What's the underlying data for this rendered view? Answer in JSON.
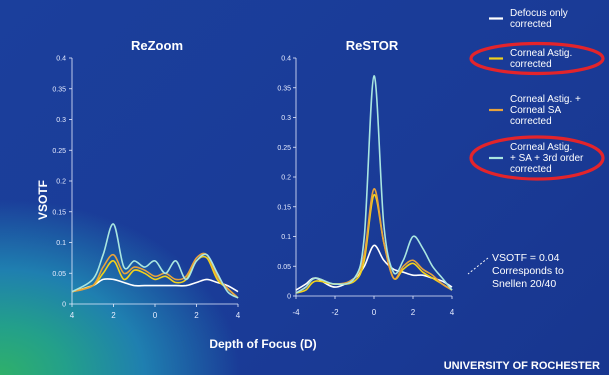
{
  "chart_data": [
    {
      "type": "line",
      "title": "ReZoom",
      "ylabel": "VSOTF",
      "xlabel": "Depth of Focus (D)",
      "xlim": [
        -4,
        4
      ],
      "ylim": [
        0,
        0.4
      ],
      "x_ticks": [
        "4",
        "2",
        "0",
        "2",
        "4"
      ],
      "y_ticks": [
        "0",
        "0.05",
        "0.1",
        "0.15",
        "0.2",
        "0.25",
        "0.3",
        "0.35",
        "0.4"
      ],
      "series": [
        {
          "name": "Defocus only corrected",
          "color": "#ffffff",
          "x": [
            -4,
            -3,
            -2.5,
            -2,
            -1.5,
            -1,
            -0.5,
            0,
            0.5,
            1,
            1.5,
            2,
            2.5,
            3,
            3.5,
            4
          ],
          "y": [
            0.02,
            0.03,
            0.04,
            0.04,
            0.035,
            0.03,
            0.03,
            0.03,
            0.03,
            0.03,
            0.03,
            0.035,
            0.04,
            0.035,
            0.03,
            0.02
          ]
        },
        {
          "name": "Corneal Astig. corrected",
          "color": "#f2d21b",
          "x": [
            -4,
            -3,
            -2.5,
            -2,
            -1.5,
            -1,
            -0.5,
            0,
            0.5,
            1,
            1.5,
            2,
            2.5,
            3,
            3.5,
            4
          ],
          "y": [
            0.02,
            0.03,
            0.05,
            0.07,
            0.04,
            0.055,
            0.05,
            0.04,
            0.045,
            0.035,
            0.04,
            0.07,
            0.075,
            0.04,
            0.025,
            0.01
          ]
        },
        {
          "name": "Corneal Astig. + Corneal SA corrected",
          "color": "#e8a23c",
          "x": [
            -4,
            -3,
            -2.5,
            -2,
            -1.5,
            -1,
            -0.5,
            0,
            0.5,
            1,
            1.5,
            2,
            2.5,
            3,
            3.5,
            4
          ],
          "y": [
            0.02,
            0.03,
            0.06,
            0.08,
            0.05,
            0.06,
            0.055,
            0.045,
            0.05,
            0.04,
            0.045,
            0.075,
            0.08,
            0.045,
            0.025,
            0.01
          ]
        },
        {
          "name": "Corneal Astig. + SA + 3rd order corrected",
          "color": "#a9e6e1",
          "x": [
            -4,
            -3,
            -2.5,
            -2,
            -1.5,
            -1,
            -0.5,
            0,
            0.5,
            1,
            1.5,
            2,
            2.5,
            3,
            3.5,
            4
          ],
          "y": [
            0.02,
            0.04,
            0.08,
            0.13,
            0.06,
            0.07,
            0.06,
            0.07,
            0.05,
            0.07,
            0.04,
            0.07,
            0.08,
            0.05,
            0.02,
            0.01
          ]
        }
      ]
    },
    {
      "type": "line",
      "title": "ReSTOR",
      "xlim": [
        -4,
        4
      ],
      "ylim": [
        0,
        0.4
      ],
      "x_ticks": [
        "-4",
        "-2",
        "0",
        "2",
        "4"
      ],
      "y_ticks": [
        "0",
        "0.05",
        "0.1",
        "0.15",
        "0.2",
        "0.25",
        "0.3",
        "0.35",
        "0.4"
      ],
      "series": [
        {
          "name": "Defocus only corrected",
          "color": "#ffffff",
          "x": [
            -4,
            -3.5,
            -3,
            -2,
            -1,
            -0.5,
            0,
            0.5,
            1,
            1.5,
            2,
            2.5,
            3,
            3.5,
            4
          ],
          "y": [
            0.01,
            0.02,
            0.03,
            0.015,
            0.03,
            0.05,
            0.085,
            0.06,
            0.045,
            0.04,
            0.035,
            0.035,
            0.03,
            0.025,
            0.015
          ]
        },
        {
          "name": "Corneal Astig. corrected",
          "color": "#f2d21b",
          "x": [
            -4,
            -3.5,
            -3,
            -2,
            -1,
            -0.5,
            0,
            0.5,
            1,
            1.5,
            2,
            2.5,
            3,
            3.5,
            4
          ],
          "y": [
            0.005,
            0.01,
            0.025,
            0.02,
            0.025,
            0.06,
            0.17,
            0.09,
            0.03,
            0.045,
            0.055,
            0.04,
            0.03,
            0.02,
            0.01
          ]
        },
        {
          "name": "Corneal Astig. + Corneal SA corrected",
          "color": "#e8a23c",
          "x": [
            -4,
            -3.5,
            -3,
            -2,
            -1,
            -0.5,
            0,
            0.5,
            1,
            1.5,
            2,
            2.5,
            3,
            3.5,
            4
          ],
          "y": [
            0.005,
            0.015,
            0.03,
            0.02,
            0.03,
            0.07,
            0.18,
            0.09,
            0.03,
            0.05,
            0.06,
            0.045,
            0.035,
            0.02,
            0.01
          ]
        },
        {
          "name": "Corneal Astig. + SA + 3rd order corrected",
          "color": "#a9e6e1",
          "x": [
            -4,
            -3.5,
            -3,
            -2,
            -1,
            -0.5,
            0,
            0.5,
            1,
            1.5,
            2,
            2.5,
            3,
            3.5,
            4
          ],
          "y": [
            0.005,
            0.015,
            0.03,
            0.02,
            0.03,
            0.1,
            0.37,
            0.12,
            0.04,
            0.06,
            0.1,
            0.08,
            0.05,
            0.03,
            0.01
          ]
        }
      ]
    }
  ],
  "legend": [
    {
      "text": "Defocus only corrected",
      "lines": [
        "Defocus only",
        "corrected"
      ],
      "color": "#ffffff",
      "highlighted": false
    },
    {
      "text": "Corneal Astig. corrected",
      "lines": [
        "Corneal Astig.",
        "corrected"
      ],
      "color": "#f2d21b",
      "highlighted": true
    },
    {
      "text": "Corneal Astig. + Corneal SA corrected",
      "lines": [
        "Corneal Astig. +",
        "Corneal SA",
        "corrected"
      ],
      "color": "#e8a23c",
      "highlighted": false
    },
    {
      "text": "Corneal Astig. + SA + 3rd order corrected",
      "lines": [
        "Corneal Astig.",
        "+ SA + 3rd order",
        "corrected"
      ],
      "color": "#a9e6e1",
      "highlighted": true
    }
  ],
  "highlight_color": "#e3242b",
  "annotation": {
    "lines": [
      "VSOTF = 0.04",
      "Corresponds to",
      "Snellen 20/40"
    ]
  },
  "footer": {
    "institution": "UNIVERSITY OF ROCHESTER"
  }
}
